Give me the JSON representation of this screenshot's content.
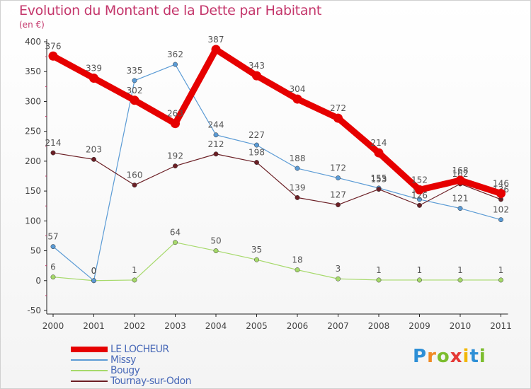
{
  "header": {
    "title": "Evolution du Montant de la Dette par Habitant",
    "subtitle": "(en €)"
  },
  "logo": {
    "letters": [
      "P",
      "r",
      "o",
      "x",
      "i",
      "t",
      "i"
    ],
    "colors": [
      "#2e8fd6",
      "#f08a24",
      "#7cbd2e",
      "#e53935",
      "#f2b705",
      "#2e8fd6",
      "#7cbd2e"
    ]
  },
  "chart_data": {
    "type": "line",
    "x": [
      "2000",
      "2001",
      "2002",
      "2003",
      "2004",
      "2005",
      "2006",
      "2007",
      "2008",
      "2009",
      "2010",
      "2011"
    ],
    "ylim": [
      -50,
      400
    ],
    "yticks": [
      -50,
      0,
      50,
      100,
      150,
      200,
      250,
      300,
      350,
      400
    ],
    "grid": false,
    "legend_position": "bottom-left",
    "series": [
      {
        "name": "LE LOCHEUR",
        "color": "#e60000",
        "values": [
          376,
          339,
          302,
          263,
          387,
          343,
          304,
          272,
          214,
          152,
          168,
          146
        ]
      },
      {
        "name": "Missy",
        "color": "#5b9bd5",
        "values": [
          57,
          0,
          335,
          362,
          244,
          227,
          188,
          172,
          155,
          136,
          121,
          102
        ]
      },
      {
        "name": "Bougy",
        "color": "#a6d96a",
        "values": [
          6,
          0,
          1,
          64,
          50,
          35,
          18,
          3,
          1,
          1,
          1,
          1
        ]
      },
      {
        "name": "Tournay-sur-Odon",
        "color": "#6b1f25",
        "values": [
          214,
          203,
          160,
          192,
          212,
          198,
          139,
          127,
          153,
          126,
          162,
          136
        ]
      }
    ]
  }
}
